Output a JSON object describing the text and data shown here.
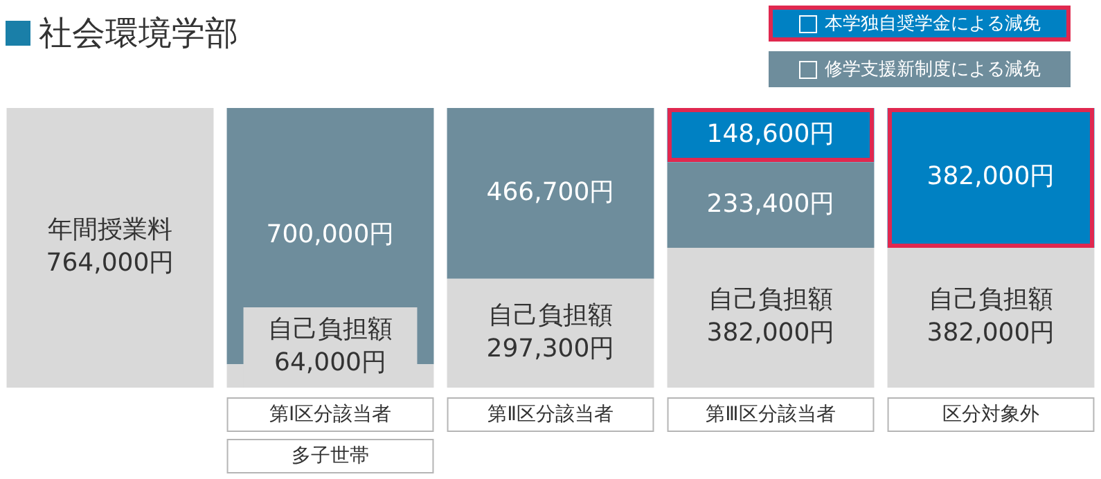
{
  "chart_data": {
    "type": "bar",
    "title": "社会環境学部",
    "stacked": true,
    "grid": false,
    "legend": "top right",
    "tick_labels": "x",
    "categories": [
      null,
      "第Ⅰ区分該当者",
      "第Ⅱ区分該当者",
      "第Ⅲ区分該当者",
      "区分対象外"
    ],
    "annotations": [
      "多子世帯"
    ],
    "series": [
      {
        "name": "年間授業料",
        "color": "#d9d9d9",
        "values": [
          764000,
          null,
          null,
          null,
          null
        ],
        "value_labels": [
          "764,000円",
          null,
          null,
          null,
          null
        ]
      },
      {
        "name": "自己負担額",
        "color": "#d9d9d9",
        "values": [
          null,
          64000,
          297300,
          382000,
          382000
        ],
        "value_labels": [
          null,
          "64,000円",
          "297,300円",
          "382,000円",
          "382,000円"
        ]
      },
      {
        "name": "修学支援新制度による減免",
        "color": "#6e8d9c",
        "values": [
          null,
          700000,
          466700,
          233400,
          null
        ],
        "value_labels": [
          null,
          "700,000円",
          "466,700円",
          "233,400円",
          null
        ]
      },
      {
        "name": "本学独自奨学金による減免",
        "color": "#0081c3",
        "values": [
          null,
          null,
          null,
          148600,
          382000
        ],
        "value_labels": [
          null,
          null,
          null,
          "148,600円",
          "382,000円"
        ]
      }
    ]
  }
}
